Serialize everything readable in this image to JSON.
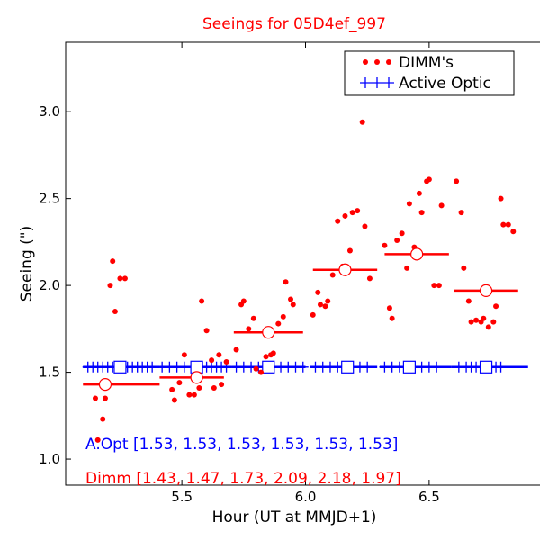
{
  "chart_data": {
    "type": "scatter",
    "title": "Seeings for 05D4ef_997",
    "xlabel": "Hour (UT at MMJD+1)",
    "ylabel": "Seeing (\")",
    "xlim": [
      5.03,
      6.97
    ],
    "ylim": [
      0.85,
      3.4
    ],
    "xticks": [
      5.5,
      6.0,
      6.5
    ],
    "xtick_labels": [
      "5.5",
      "6.0",
      "6.5"
    ],
    "yticks": [
      1.0,
      1.5,
      2.0,
      2.5,
      3.0
    ],
    "ytick_labels": [
      "1.0",
      "1.5",
      "2.0",
      "2.5",
      "3.0"
    ],
    "grid": false,
    "legend_position": "top-right",
    "legend": [
      {
        "label": "DIMM's",
        "marker": "dots",
        "color": "#ff0000"
      },
      {
        "label": "Active Optic",
        "marker": "plus",
        "color": "#0000ff"
      }
    ],
    "series": [
      {
        "name": "DIMM's",
        "color": "#ff0000",
        "points": [
          [
            5.15,
            1.35
          ],
          [
            5.16,
            1.11
          ],
          [
            5.18,
            1.23
          ],
          [
            5.19,
            1.35
          ],
          [
            5.21,
            2.0
          ],
          [
            5.22,
            2.14
          ],
          [
            5.23,
            1.85
          ],
          [
            5.25,
            2.04
          ],
          [
            5.27,
            2.04
          ],
          [
            5.46,
            1.4
          ],
          [
            5.47,
            1.34
          ],
          [
            5.49,
            1.44
          ],
          [
            5.51,
            1.6
          ],
          [
            5.53,
            1.37
          ],
          [
            5.55,
            1.37
          ],
          [
            5.57,
            1.41
          ],
          [
            5.58,
            1.91
          ],
          [
            5.6,
            1.74
          ],
          [
            5.62,
            1.57
          ],
          [
            5.63,
            1.41
          ],
          [
            5.65,
            1.6
          ],
          [
            5.66,
            1.43
          ],
          [
            5.68,
            1.56
          ],
          [
            5.72,
            1.63
          ],
          [
            5.74,
            1.89
          ],
          [
            5.75,
            1.91
          ],
          [
            5.77,
            1.75
          ],
          [
            5.79,
            1.81
          ],
          [
            5.8,
            1.52
          ],
          [
            5.82,
            1.5
          ],
          [
            5.84,
            1.59
          ],
          [
            5.86,
            1.6
          ],
          [
            5.87,
            1.61
          ],
          [
            5.89,
            1.78
          ],
          [
            5.91,
            1.82
          ],
          [
            5.92,
            2.02
          ],
          [
            5.94,
            1.92
          ],
          [
            5.95,
            1.89
          ],
          [
            6.03,
            1.83
          ],
          [
            6.05,
            1.96
          ],
          [
            6.06,
            1.89
          ],
          [
            6.08,
            1.88
          ],
          [
            6.09,
            1.91
          ],
          [
            6.11,
            2.06
          ],
          [
            6.13,
            2.37
          ],
          [
            6.15,
            2.11
          ],
          [
            6.16,
            2.4
          ],
          [
            6.18,
            2.2
          ],
          [
            6.19,
            2.42
          ],
          [
            6.21,
            2.43
          ],
          [
            6.23,
            2.94
          ],
          [
            6.24,
            2.34
          ],
          [
            6.26,
            2.04
          ],
          [
            6.32,
            2.23
          ],
          [
            6.34,
            1.87
          ],
          [
            6.35,
            1.81
          ],
          [
            6.37,
            2.26
          ],
          [
            6.39,
            2.3
          ],
          [
            6.41,
            2.1
          ],
          [
            6.42,
            2.47
          ],
          [
            6.44,
            2.22
          ],
          [
            6.46,
            2.53
          ],
          [
            6.47,
            2.42
          ],
          [
            6.49,
            2.6
          ],
          [
            6.5,
            2.61
          ],
          [
            6.52,
            2.0
          ],
          [
            6.54,
            2.0
          ],
          [
            6.55,
            2.46
          ],
          [
            6.61,
            2.6
          ],
          [
            6.63,
            2.42
          ],
          [
            6.64,
            2.1
          ],
          [
            6.66,
            1.91
          ],
          [
            6.67,
            1.79
          ],
          [
            6.69,
            1.8
          ],
          [
            6.71,
            1.79
          ],
          [
            6.72,
            1.81
          ],
          [
            6.74,
            1.76
          ],
          [
            6.76,
            1.79
          ],
          [
            6.77,
            1.88
          ],
          [
            6.79,
            2.5
          ],
          [
            6.8,
            2.35
          ],
          [
            6.82,
            2.35
          ],
          [
            6.84,
            2.31
          ]
        ]
      },
      {
        "name": "Active Optic",
        "color": "#0000ff",
        "points": [
          [
            5.12,
            1.53
          ],
          [
            5.14,
            1.53
          ],
          [
            5.16,
            1.53
          ],
          [
            5.18,
            1.53
          ],
          [
            5.2,
            1.53
          ],
          [
            5.22,
            1.53
          ],
          [
            5.24,
            1.53
          ],
          [
            5.26,
            1.53
          ],
          [
            5.28,
            1.53
          ],
          [
            5.3,
            1.53
          ],
          [
            5.32,
            1.53
          ],
          [
            5.34,
            1.53
          ],
          [
            5.36,
            1.53
          ],
          [
            5.38,
            1.53
          ],
          [
            5.42,
            1.53
          ],
          [
            5.45,
            1.53
          ],
          [
            5.48,
            1.53
          ],
          [
            5.51,
            1.53
          ],
          [
            5.54,
            1.53
          ],
          [
            5.57,
            1.53
          ],
          [
            5.6,
            1.53
          ],
          [
            5.62,
            1.53
          ],
          [
            5.64,
            1.53
          ],
          [
            5.66,
            1.53
          ],
          [
            5.68,
            1.53
          ],
          [
            5.72,
            1.53
          ],
          [
            5.75,
            1.53
          ],
          [
            5.78,
            1.53
          ],
          [
            5.81,
            1.53
          ],
          [
            5.84,
            1.53
          ],
          [
            5.87,
            1.53
          ],
          [
            5.9,
            1.53
          ],
          [
            5.93,
            1.53
          ],
          [
            5.96,
            1.53
          ],
          [
            5.99,
            1.53
          ],
          [
            6.04,
            1.53
          ],
          [
            6.07,
            1.53
          ],
          [
            6.1,
            1.53
          ],
          [
            6.13,
            1.53
          ],
          [
            6.16,
            1.53
          ],
          [
            6.19,
            1.53
          ],
          [
            6.22,
            1.53
          ],
          [
            6.25,
            1.53
          ],
          [
            6.32,
            1.53
          ],
          [
            6.35,
            1.53
          ],
          [
            6.38,
            1.53
          ],
          [
            6.41,
            1.53
          ],
          [
            6.44,
            1.53
          ],
          [
            6.47,
            1.53
          ],
          [
            6.5,
            1.53
          ],
          [
            6.53,
            1.53
          ],
          [
            6.62,
            1.53
          ],
          [
            6.65,
            1.53
          ],
          [
            6.67,
            1.53
          ],
          [
            6.69,
            1.53
          ],
          [
            6.71,
            1.53
          ],
          [
            6.73,
            1.53
          ],
          [
            6.75,
            1.53
          ],
          [
            6.77,
            1.53
          ],
          [
            6.79,
            1.53
          ]
        ]
      }
    ],
    "dimm_bins": [
      {
        "x0": 5.1,
        "x1": 5.41,
        "mean": 1.43,
        "center": 5.19
      },
      {
        "x0": 5.41,
        "x1": 5.67,
        "mean": 1.47,
        "center": 5.56
      },
      {
        "x0": 5.71,
        "x1": 5.99,
        "mean": 1.73,
        "center": 5.85
      },
      {
        "x0": 6.03,
        "x1": 6.29,
        "mean": 2.09,
        "center": 6.16
      },
      {
        "x0": 6.32,
        "x1": 6.58,
        "mean": 2.18,
        "center": 6.45
      },
      {
        "x0": 6.6,
        "x1": 6.86,
        "mean": 1.97,
        "center": 6.73
      }
    ],
    "ao_bins": [
      {
        "x0": 5.1,
        "x1": 5.41,
        "mean": 1.53,
        "center": 5.25
      },
      {
        "x0": 5.41,
        "x1": 5.7,
        "mean": 1.53,
        "center": 5.56
      },
      {
        "x0": 5.7,
        "x1": 6.0,
        "mean": 1.53,
        "center": 5.85
      },
      {
        "x0": 6.02,
        "x1": 6.29,
        "mean": 1.53,
        "center": 6.17
      },
      {
        "x0": 6.3,
        "x1": 6.59,
        "mean": 1.53,
        "center": 6.42
      },
      {
        "x0": 6.59,
        "x1": 6.9,
        "mean": 1.53,
        "center": 6.73
      }
    ],
    "annotations": {
      "aopt": "A.Opt [1.53, 1.53, 1.53, 1.53, 1.53, 1.53]",
      "dimm": "Dimm [1.43, 1.47, 1.73, 2.09, 2.18, 1.97]"
    }
  }
}
